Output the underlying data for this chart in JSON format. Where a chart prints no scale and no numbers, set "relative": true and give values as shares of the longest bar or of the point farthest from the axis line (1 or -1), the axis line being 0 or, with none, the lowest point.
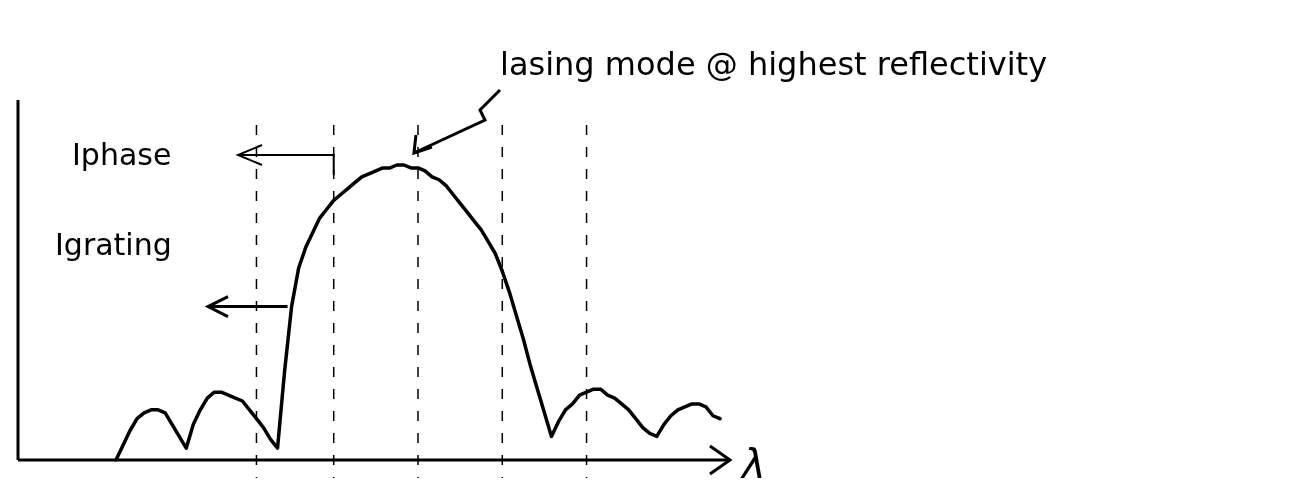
{
  "chart_data": {
    "type": "line",
    "relative": true,
    "xlabel": "λ",
    "marker": "none",
    "grid": "x",
    "line_style": "solid",
    "categories": [
      null,
      null,
      null,
      null,
      null,
      null,
      null,
      null,
      null,
      null,
      null,
      null,
      null,
      null,
      null,
      null,
      null,
      null,
      null,
      null,
      null,
      null,
      null,
      null,
      null,
      null,
      null,
      null,
      null,
      null,
      null,
      null,
      null,
      null,
      null,
      null,
      null,
      null,
      null,
      null,
      null,
      null,
      null,
      null,
      null,
      null,
      null,
      null,
      null,
      null,
      null,
      null,
      null,
      null,
      null,
      null,
      null,
      null,
      null,
      null,
      null,
      null,
      null,
      null,
      null,
      null,
      null,
      null,
      null,
      null,
      null,
      null,
      null,
      null,
      null,
      null,
      null,
      null,
      null,
      null,
      null,
      null,
      null,
      null,
      null,
      null,
      null
    ],
    "series": [
      {
        "color": "#000000",
        "values": [
          0,
          0.05,
          0.1,
          0.14,
          0.16,
          0.17,
          0.17,
          0.16,
          0.12,
          0.08,
          0.04,
          0.12,
          0.17,
          0.21,
          0.23,
          0.23,
          0.22,
          0.21,
          0.2,
          0.17,
          0.14,
          0.11,
          0.07,
          0.04,
          0.3,
          0.52,
          0.65,
          0.72,
          0.77,
          0.82,
          0.85,
          0.88,
          0.9,
          0.92,
          0.94,
          0.96,
          0.97,
          0.98,
          0.99,
          0.99,
          1,
          1,
          0.99,
          0.99,
          0.98,
          0.96,
          0.95,
          0.93,
          0.9,
          0.87,
          0.84,
          0.81,
          0.78,
          0.74,
          0.7,
          0.64,
          0.57,
          0.49,
          0.41,
          0.32,
          0.24,
          0.16,
          0.08,
          0.13,
          0.17,
          0.19,
          0.22,
          0.23,
          0.24,
          0.24,
          0.22,
          0.21,
          0.19,
          0.17,
          0.14,
          0.11,
          0.09,
          0.08,
          0.12,
          0.15,
          0.17,
          0.18,
          0.19,
          0.19,
          0.18,
          0.15,
          0.14
        ]
      }
    ],
    "annotations": [
      "lasing mode @ highest reflectivity",
      "Iphase",
      "Igrating"
    ]
  }
}
